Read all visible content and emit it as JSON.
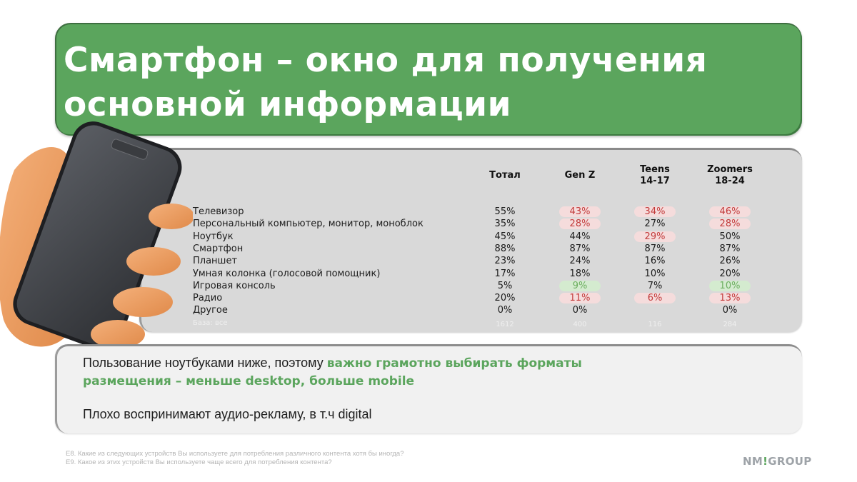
{
  "title": {
    "line1": "Смартфон – окно для получения",
    "line2": "основной информации"
  },
  "table": {
    "columns": [
      {
        "line1": "Тотал",
        "line2": ""
      },
      {
        "line1": "Gen Z",
        "line2": ""
      },
      {
        "line1": "Teens",
        "line2": "14-17"
      },
      {
        "line1": "Zoomers",
        "line2": "18-24"
      }
    ],
    "rows": [
      {
        "label": "Телевизор",
        "values": [
          "55%",
          "43%",
          "34%",
          "46%"
        ],
        "flags": [
          "",
          "neg",
          "neg",
          "neg"
        ]
      },
      {
        "label": "Персональный компьютер, монитор, моноблок",
        "values": [
          "35%",
          "28%",
          "27%",
          "28%"
        ],
        "flags": [
          "",
          "neg",
          "",
          "neg"
        ]
      },
      {
        "label": "Ноутбук",
        "values": [
          "45%",
          "44%",
          "29%",
          "50%"
        ],
        "flags": [
          "",
          "",
          "neg",
          ""
        ]
      },
      {
        "label": "Смартфон",
        "values": [
          "88%",
          "87%",
          "87%",
          "87%"
        ],
        "flags": [
          "",
          "",
          "",
          ""
        ]
      },
      {
        "label": "Планшет",
        "values": [
          "23%",
          "24%",
          "16%",
          "26%"
        ],
        "flags": [
          "",
          "",
          "",
          ""
        ]
      },
      {
        "label": "Умная колонка (голосовой помощник)",
        "values": [
          "17%",
          "18%",
          "10%",
          "20%"
        ],
        "flags": [
          "",
          "",
          "",
          ""
        ]
      },
      {
        "label": "Игровая консоль",
        "values": [
          "5%",
          "9%",
          "7%",
          "10%"
        ],
        "flags": [
          "",
          "pos",
          "",
          "pos"
        ]
      },
      {
        "label": "Радио",
        "values": [
          "20%",
          "11%",
          "6%",
          "13%"
        ],
        "flags": [
          "",
          "neg",
          "neg",
          "neg"
        ]
      },
      {
        "label": "Другое",
        "values": [
          "0%",
          "0%",
          "",
          "0%"
        ],
        "flags": [
          "",
          "",
          "",
          ""
        ]
      }
    ],
    "base": {
      "label": "База: все",
      "values": [
        "1612",
        "400",
        "116",
        "284"
      ]
    }
  },
  "insights": {
    "line1_plain": "Пользование ноутбуками ниже, поэтому ",
    "line1_highlight": "важно грамотно выбирать форматы",
    "line2_highlight": "размещения – меньше desktop, больше mobile",
    "line3": "Плохо воспринимают аудио-рекламу, в т.ч digital"
  },
  "footnotes": [
    "E8. Какие из следующих устройств Вы используете для потребления различного контента хотя бы иногда?",
    "E9. Какое из этих устройств Вы используете чаще всего для потребления контента?"
  ],
  "logo": {
    "part1": "NM",
    "bang": "!",
    "part2": "GROUP"
  },
  "colors": {
    "brand_green": "#5ba55d",
    "negative_bg": "#f5dcdc",
    "negative_text": "#c23b3b",
    "positive_bg": "#d4ebcf",
    "positive_text": "#6cae5f",
    "table_bg": "#d9d9d9",
    "body_bg": "#f1f1f1"
  },
  "illustration": {
    "icon": "hand-holding-smartphone-icon"
  }
}
